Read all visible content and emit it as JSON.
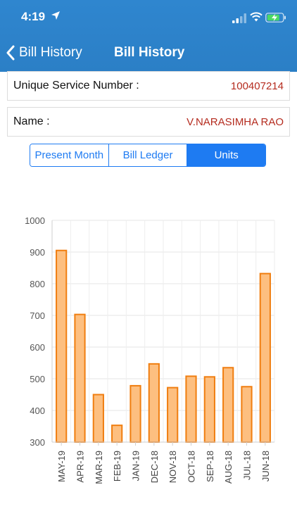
{
  "status_bar": {
    "time": "4:19"
  },
  "nav": {
    "back_label": "Bill History",
    "title": "Bill History"
  },
  "service": {
    "label": "Unique Service Number :",
    "value": "100407214"
  },
  "customer": {
    "label": "Name :",
    "value": "V.NARASIMHA RAO"
  },
  "segments": [
    {
      "label": "Present Month",
      "active": false
    },
    {
      "label": "Bill Ledger",
      "active": false
    },
    {
      "label": "Units",
      "active": true
    }
  ],
  "colors": {
    "bar_fill": "#fdbf80",
    "bar_stroke": "#f07e10",
    "header": "#2b80c8",
    "accent": "#1e7bf2",
    "value_text": "#b52c1f"
  },
  "chart_data": {
    "type": "bar",
    "categories": [
      "MAY-19",
      "APR-19",
      "MAR-19",
      "FEB-19",
      "JAN-19",
      "DEC-18",
      "NOV-18",
      "OCT-18",
      "SEP-18",
      "AUG-18",
      "JUL-18",
      "JUN-18"
    ],
    "values": [
      905,
      703,
      450,
      353,
      478,
      547,
      472,
      508,
      506,
      535,
      475,
      832
    ],
    "ylim": [
      300,
      1000
    ],
    "yticks": [
      300,
      400,
      500,
      600,
      700,
      800,
      900,
      1000
    ],
    "grid": true
  }
}
